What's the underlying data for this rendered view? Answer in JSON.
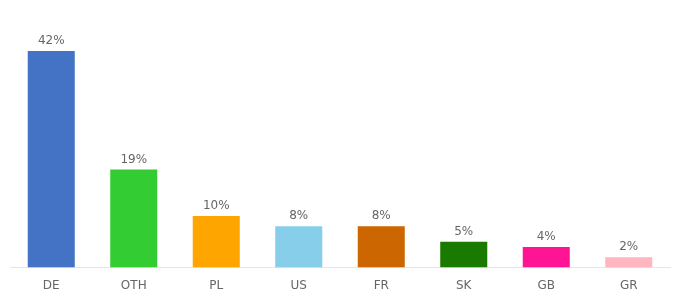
{
  "chart_data": {
    "type": "bar",
    "categories": [
      "DE",
      "OTH",
      "PL",
      "US",
      "FR",
      "SK",
      "GB",
      "GR"
    ],
    "values": [
      42,
      19,
      10,
      8,
      8,
      5,
      4,
      2
    ],
    "value_labels": [
      "42%",
      "19%",
      "10%",
      "8%",
      "8%",
      "5%",
      "4%",
      "2%"
    ],
    "colors": [
      "#4472C4",
      "#33CC33",
      "#FFA500",
      "#87CEEB",
      "#CC6600",
      "#1A7A00",
      "#FF1493",
      "#FFB6C1"
    ],
    "ylim": [
      0,
      48
    ],
    "data_labels": true,
    "tick_labels": "x",
    "grid": false
  }
}
